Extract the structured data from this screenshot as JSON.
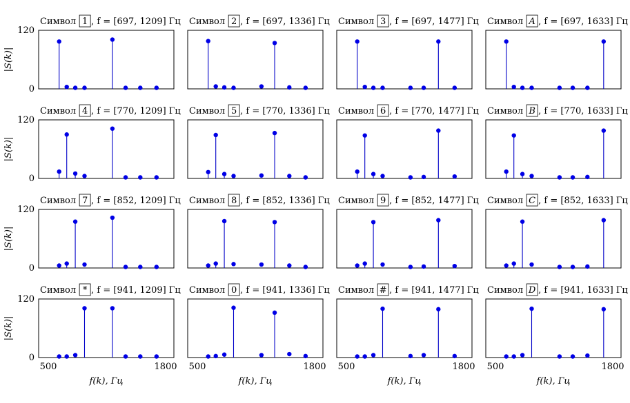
{
  "chart_data": [
    {
      "type": "stem",
      "title_prefix": "Символ",
      "symbol": "1",
      "freq_label": "f = [697, 1209] Гц",
      "ylabel": "|S(k)|",
      "xlim": [
        500,
        1800
      ],
      "ylim": [
        0,
        120
      ],
      "yticks": [
        "0",
        "120"
      ],
      "xticks": [
        "500",
        "1800"
      ],
      "x": [
        697,
        770,
        852,
        941,
        1209,
        1336,
        1477,
        1633
      ],
      "values": [
        97,
        4,
        2,
        1,
        101,
        1,
        0,
        0
      ]
    },
    {
      "type": "stem",
      "title_prefix": "Символ",
      "symbol": "2",
      "freq_label": "f = [697, 1336] Гц",
      "xlim": [
        500,
        1800
      ],
      "ylim": [
        0,
        120
      ],
      "yticks": [
        "0",
        "120"
      ],
      "xticks": [
        "500",
        "1800"
      ],
      "x": [
        697,
        770,
        852,
        941,
        1209,
        1336,
        1477,
        1633
      ],
      "values": [
        98,
        5,
        3,
        2,
        5,
        94,
        3,
        1
      ]
    },
    {
      "type": "stem",
      "title_prefix": "Символ",
      "symbol": "3",
      "freq_label": "f = [697, 1477] Гц",
      "xlim": [
        500,
        1800
      ],
      "ylim": [
        0,
        120
      ],
      "yticks": [
        "0",
        "120"
      ],
      "xticks": [
        "500",
        "1800"
      ],
      "x": [
        697,
        770,
        852,
        941,
        1209,
        1336,
        1477,
        1633
      ],
      "values": [
        97,
        4,
        2,
        1,
        1,
        2,
        97,
        2
      ]
    },
    {
      "type": "stem",
      "title_prefix": "Символ",
      "symbol": "A",
      "freq_label": "f = [697, 1633] Гц",
      "xlim": [
        500,
        1800
      ],
      "ylim": [
        0,
        120
      ],
      "yticks": [
        "0",
        "120"
      ],
      "xticks": [
        "500",
        "1800"
      ],
      "x": [
        697,
        770,
        852,
        941,
        1209,
        1336,
        1477,
        1633
      ],
      "values": [
        97,
        4,
        2,
        1,
        0,
        1,
        2,
        97
      ]
    },
    {
      "type": "stem",
      "title_prefix": "Символ",
      "symbol": "4",
      "freq_label": "f = [770, 1209] Гц",
      "ylabel": "|S(k)|",
      "xlim": [
        500,
        1800
      ],
      "ylim": [
        0,
        120
      ],
      "yticks": [
        "0",
        "120"
      ],
      "xticks": [
        "500",
        "1800"
      ],
      "x": [
        697,
        770,
        852,
        941,
        1209,
        1336,
        1477,
        1633
      ],
      "values": [
        14,
        90,
        10,
        5,
        102,
        1,
        0,
        0
      ]
    },
    {
      "type": "stem",
      "title_prefix": "Символ",
      "symbol": "5",
      "freq_label": "f = [770, 1336] Гц",
      "xlim": [
        500,
        1800
      ],
      "ylim": [
        0,
        120
      ],
      "yticks": [
        "0",
        "120"
      ],
      "xticks": [
        "500",
        "1800"
      ],
      "x": [
        697,
        770,
        852,
        941,
        1209,
        1336,
        1477,
        1633
      ],
      "values": [
        13,
        89,
        9,
        5,
        6,
        93,
        5,
        2
      ]
    },
    {
      "type": "stem",
      "title_prefix": "Символ",
      "symbol": "6",
      "freq_label": "f = [770, 1477] Гц",
      "xlim": [
        500,
        1800
      ],
      "ylim": [
        0,
        120
      ],
      "yticks": [
        "0",
        "120"
      ],
      "xticks": [
        "500",
        "1800"
      ],
      "x": [
        697,
        770,
        852,
        941,
        1209,
        1336,
        1477,
        1633
      ],
      "values": [
        14,
        88,
        9,
        5,
        1,
        3,
        98,
        4
      ]
    },
    {
      "type": "stem",
      "title_prefix": "Символ",
      "symbol": "B",
      "freq_label": "f = [770, 1633] Гц",
      "xlim": [
        500,
        1800
      ],
      "ylim": [
        0,
        120
      ],
      "yticks": [
        "0",
        "120"
      ],
      "xticks": [
        "500",
        "1800"
      ],
      "x": [
        697,
        770,
        852,
        941,
        1209,
        1336,
        1477,
        1633
      ],
      "values": [
        14,
        88,
        9,
        5,
        1,
        1,
        3,
        98
      ]
    },
    {
      "type": "stem",
      "title_prefix": "Символ",
      "symbol": "7",
      "freq_label": "f = [852, 1209] Гц",
      "ylabel": "|S(k)|",
      "xlim": [
        500,
        1800
      ],
      "ylim": [
        0,
        120
      ],
      "yticks": [
        "0",
        "120"
      ],
      "xticks": [
        "500",
        "1800"
      ],
      "x": [
        697,
        770,
        852,
        941,
        1209,
        1336,
        1477,
        1633
      ],
      "values": [
        5,
        9,
        95,
        7,
        103,
        2,
        0,
        0
      ]
    },
    {
      "type": "stem",
      "title_prefix": "Символ",
      "symbol": "8",
      "freq_label": "f = [852, 1336] Гц",
      "xlim": [
        500,
        1800
      ],
      "ylim": [
        0,
        120
      ],
      "yticks": [
        "0",
        "120"
      ],
      "xticks": [
        "500",
        "1800"
      ],
      "x": [
        697,
        770,
        852,
        941,
        1209,
        1336,
        1477,
        1633
      ],
      "values": [
        5,
        9,
        96,
        8,
        7,
        94,
        5,
        2
      ]
    },
    {
      "type": "stem",
      "title_prefix": "Символ",
      "symbol": "9",
      "freq_label": "f = [852, 1477] Гц",
      "xlim": [
        500,
        1800
      ],
      "ylim": [
        0,
        120
      ],
      "yticks": [
        "0",
        "120"
      ],
      "xticks": [
        "500",
        "1800"
      ],
      "x": [
        697,
        770,
        852,
        941,
        1209,
        1336,
        1477,
        1633
      ],
      "values": [
        5,
        9,
        94,
        7,
        1,
        3,
        98,
        4
      ]
    },
    {
      "type": "stem",
      "title_prefix": "Символ",
      "symbol": "C",
      "freq_label": "f = [852, 1633] Гц",
      "xlim": [
        500,
        1800
      ],
      "ylim": [
        0,
        120
      ],
      "yticks": [
        "0",
        "120"
      ],
      "xticks": [
        "500",
        "1800"
      ],
      "x": [
        697,
        770,
        852,
        941,
        1209,
        1336,
        1477,
        1633
      ],
      "values": [
        5,
        9,
        95,
        7,
        1,
        1,
        3,
        98
      ]
    },
    {
      "type": "stem",
      "title_prefix": "Символ",
      "symbol": "*",
      "freq_label": "f = [941, 1209] Гц",
      "ylabel": "|S(k)|",
      "xlabel": "f(k), Гц",
      "xlim": [
        500,
        1800
      ],
      "ylim": [
        0,
        120
      ],
      "yticks": [
        "0",
        "120"
      ],
      "xticks": [
        "500",
        "1800"
      ],
      "x": [
        697,
        770,
        852,
        941,
        1209,
        1336,
        1477,
        1633
      ],
      "values": [
        1,
        2,
        5,
        101,
        101,
        1,
        0,
        0
      ]
    },
    {
      "type": "stem",
      "title_prefix": "Символ",
      "symbol": "0",
      "freq_label": "f = [941, 1336] Гц",
      "xlabel": "f(k), Гц",
      "xlim": [
        500,
        1800
      ],
      "ylim": [
        0,
        120
      ],
      "yticks": [
        "0",
        "120"
      ],
      "xticks": [
        "500",
        "1800"
      ],
      "x": [
        697,
        770,
        852,
        941,
        1209,
        1336,
        1477,
        1633
      ],
      "values": [
        1,
        3,
        6,
        102,
        5,
        92,
        7,
        3
      ]
    },
    {
      "type": "stem",
      "title_prefix": "Символ",
      "symbol": "#",
      "freq_label": "f = [941, 1477] Гц",
      "xlabel": "f(k), Гц",
      "xlim": [
        500,
        1800
      ],
      "ylim": [
        0,
        120
      ],
      "yticks": [
        "0",
        "120"
      ],
      "xticks": [
        "500",
        "1800"
      ],
      "x": [
        697,
        770,
        852,
        941,
        1209,
        1336,
        1477,
        1633
      ],
      "values": [
        1,
        2,
        5,
        100,
        3,
        5,
        99,
        3
      ]
    },
    {
      "type": "stem",
      "title_prefix": "Символ",
      "symbol": "D",
      "freq_label": "f = [941, 1633] Гц",
      "xlabel": "f(k), Гц",
      "xlim": [
        500,
        1800
      ],
      "ylim": [
        0,
        120
      ],
      "yticks": [
        "0",
        "120"
      ],
      "xticks": [
        "500",
        "1800"
      ],
      "x": [
        697,
        770,
        852,
        941,
        1209,
        1336,
        1477,
        1633
      ],
      "values": [
        1,
        2,
        5,
        100,
        2,
        2,
        4,
        99
      ]
    }
  ],
  "colors": {
    "stem": "#0000c8",
    "marker": "#0000e6"
  }
}
